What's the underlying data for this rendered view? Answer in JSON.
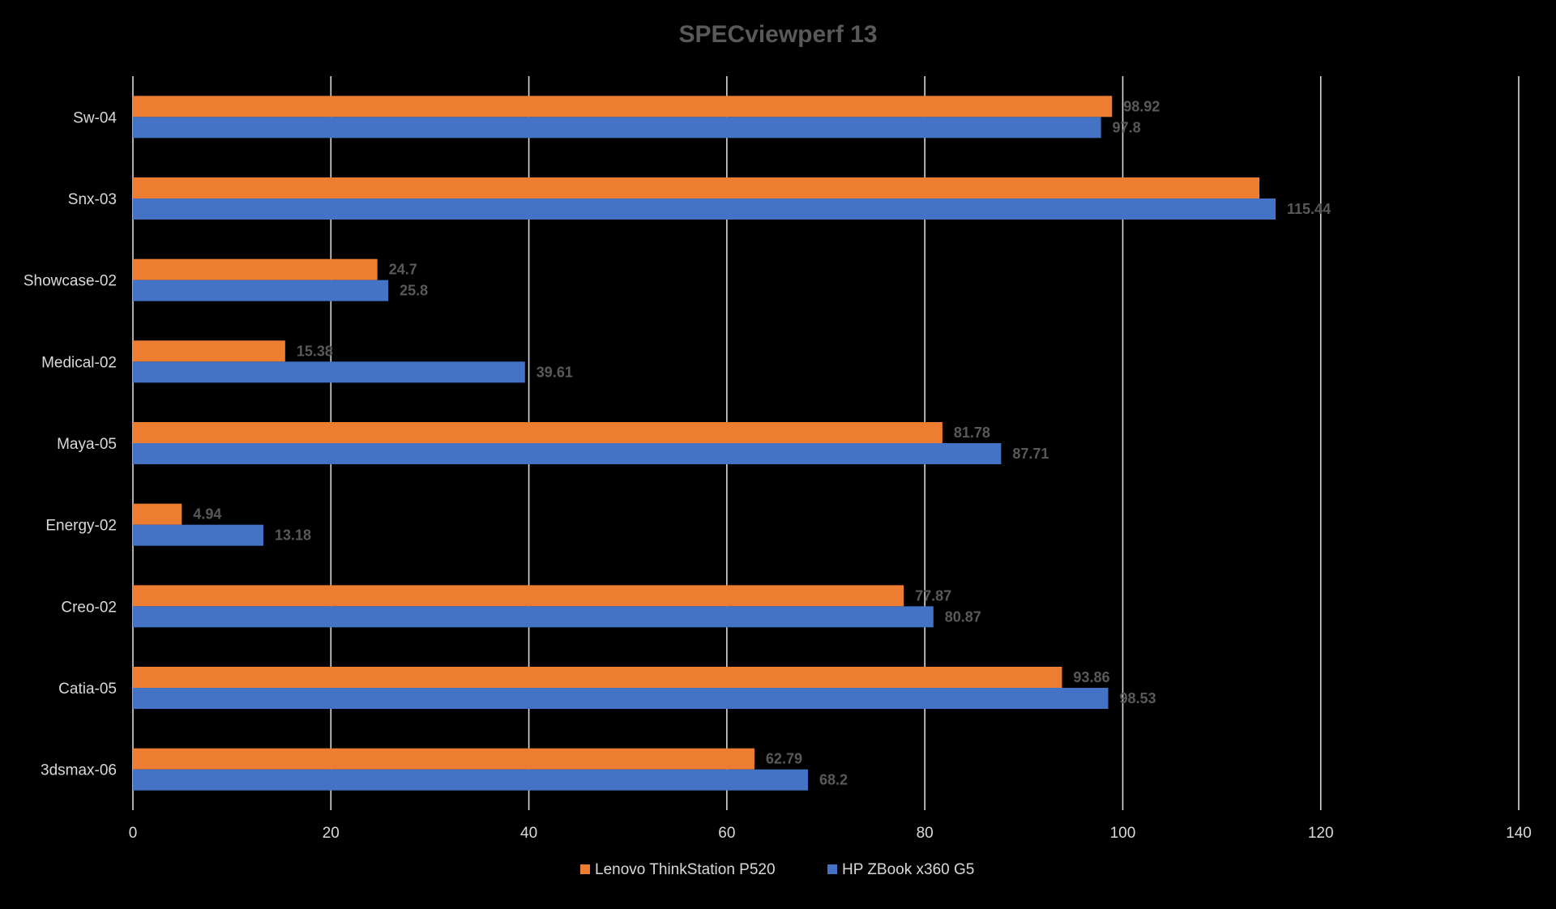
{
  "chart_data": {
    "type": "bar",
    "orientation": "horizontal",
    "title": "SPECviewperf 13",
    "xlabel": "",
    "ylabel": "",
    "xlim": [
      0,
      140
    ],
    "x_ticks": [
      0,
      20,
      40,
      60,
      80,
      100,
      120,
      140
    ],
    "grid": true,
    "legend_position": "bottom",
    "categories": [
      "Sw-04",
      "Snx-03",
      "Showcase-02",
      "Medical-02",
      "Maya-05",
      "Energy-02",
      "Creo-02",
      "Catia-05",
      "3dsmax-06"
    ],
    "series": [
      {
        "name": "Lenovo ThinkStation P520",
        "color": "#ED7D31",
        "values": [
          98.92,
          113.8,
          24.7,
          15.38,
          81.78,
          4.94,
          77.87,
          93.86,
          62.79
        ],
        "labels": [
          "98.92",
          "",
          "24.7",
          "15.38",
          "81.78",
          "4.94",
          "77.87",
          "93.86",
          "62.79"
        ]
      },
      {
        "name": "HP ZBook x360 G5",
        "color": "#4472C4",
        "values": [
          97.8,
          115.44,
          25.8,
          39.61,
          87.71,
          13.18,
          80.87,
          98.53,
          68.2
        ],
        "labels": [
          "97.8",
          "115.44",
          "25.8",
          "39.61",
          "87.71",
          "13.18",
          "80.87",
          "98.53",
          "68.2"
        ]
      }
    ],
    "colors": {
      "background": "#000000",
      "title": "#595959",
      "axis_text": "#D9D9D9",
      "data_label": "#595959",
      "gridline": "#D9D9D9"
    }
  }
}
